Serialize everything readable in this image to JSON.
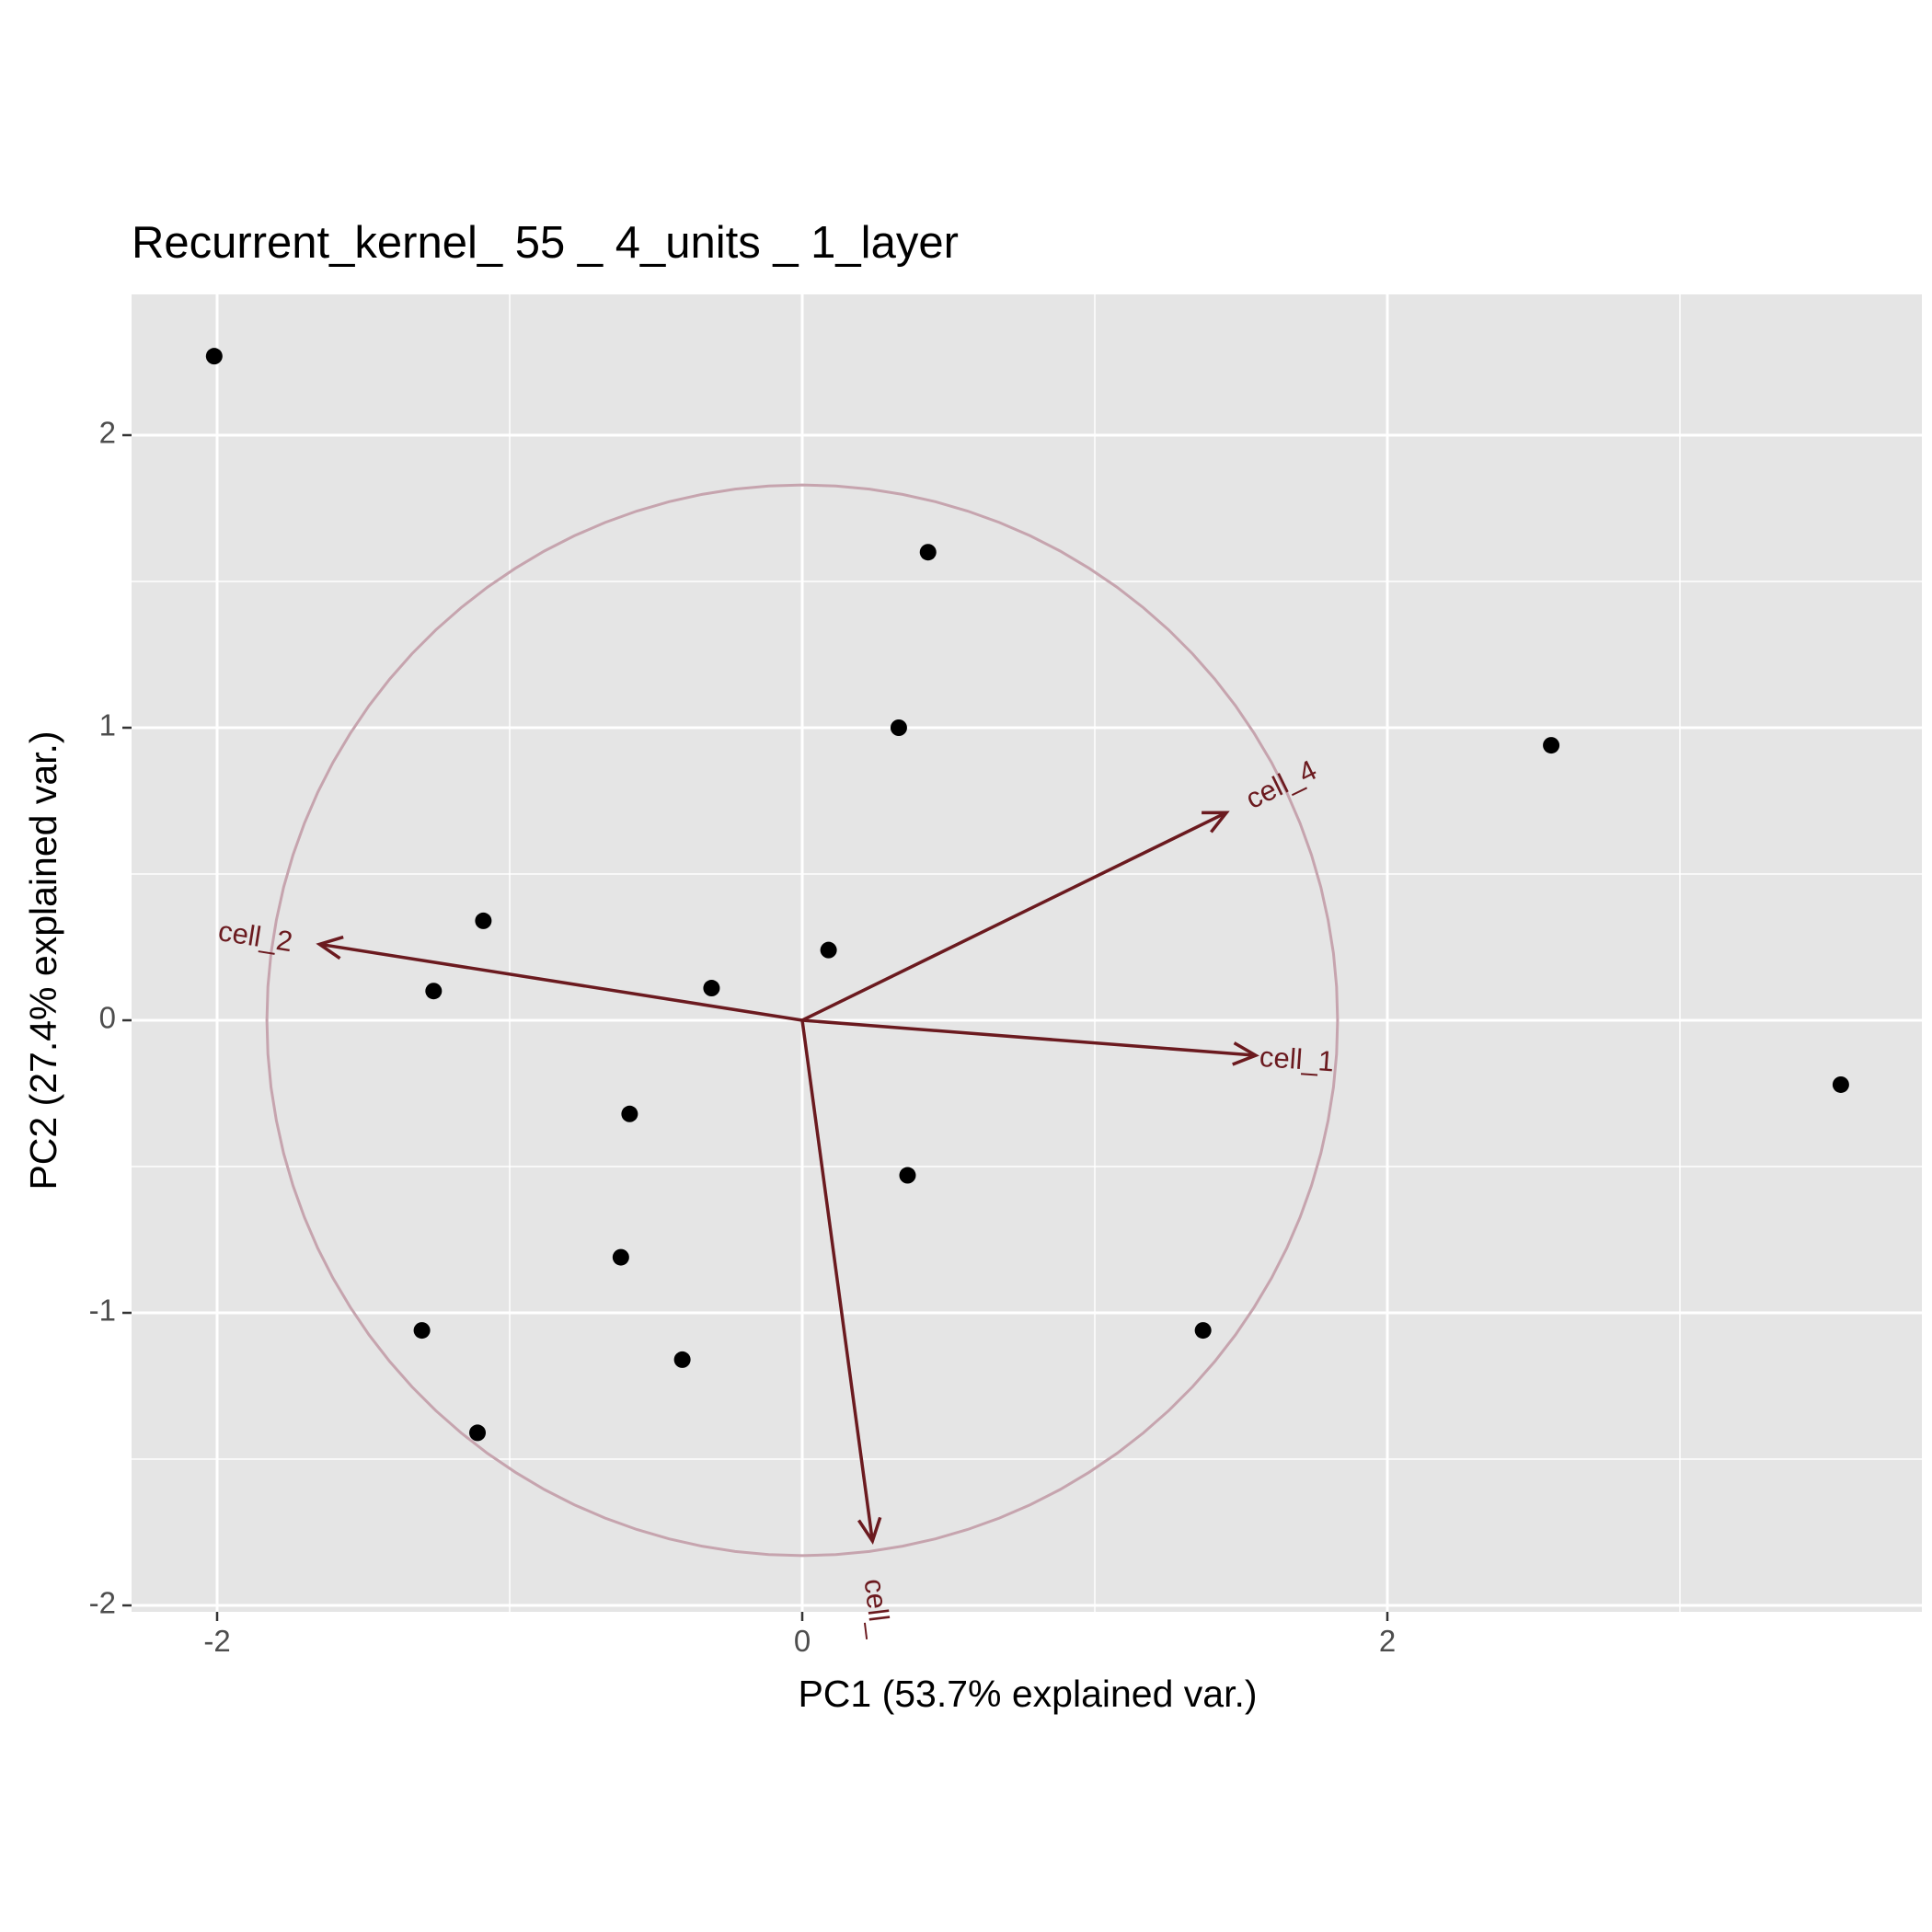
{
  "chart_data": {
    "type": "scatter",
    "title": "Recurrent_kernel_ 55 _ 4_units _ 1_layer",
    "xlabel": "PC1 (53.7% explained var.)",
    "ylabel": "PC2 (27.4% explained var.)",
    "xlim": [
      -2.3,
      3.8
    ],
    "ylim": [
      -2.05,
      2.5
    ],
    "x_ticks": [
      {
        "value": -2,
        "label": "-2"
      },
      {
        "value": 0,
        "label": "0"
      },
      {
        "value": 2,
        "label": "2"
      }
    ],
    "y_ticks": [
      {
        "value": -2,
        "label": "-2"
      },
      {
        "value": -1,
        "label": "-1"
      },
      {
        "value": 0,
        "label": "0"
      },
      {
        "value": 1,
        "label": "1"
      },
      {
        "value": 2,
        "label": "2"
      }
    ],
    "points": [
      {
        "x": -2.01,
        "y": 2.27
      },
      {
        "x": 0.43,
        "y": 1.6
      },
      {
        "x": 0.33,
        "y": 1.0
      },
      {
        "x": 2.56,
        "y": 0.94
      },
      {
        "x": -1.09,
        "y": 0.34
      },
      {
        "x": 0.09,
        "y": 0.24
      },
      {
        "x": -1.26,
        "y": 0.1
      },
      {
        "x": -0.31,
        "y": 0.11
      },
      {
        "x": 3.55,
        "y": -0.22
      },
      {
        "x": -0.59,
        "y": -0.32
      },
      {
        "x": 0.36,
        "y": -0.53
      },
      {
        "x": -0.62,
        "y": -0.81
      },
      {
        "x": 1.37,
        "y": -1.06
      },
      {
        "x": -1.3,
        "y": -1.06
      },
      {
        "x": -0.41,
        "y": -1.16
      },
      {
        "x": -1.11,
        "y": -1.41
      }
    ],
    "loadings": [
      {
        "label": "cell_1",
        "x": 1.55,
        "y": -0.12,
        "label_x": 1.69,
        "label_y": -0.14,
        "angle": 4
      },
      {
        "label": "cell_2",
        "x": -1.65,
        "y": 0.26,
        "label_x": -1.87,
        "label_y": 0.28,
        "angle": 9
      },
      {
        "label": "cell_4",
        "x": 1.45,
        "y": 0.71,
        "label_x": 1.64,
        "label_y": 0.8,
        "angle": -26
      },
      {
        "label": "cell_",
        "x": 0.24,
        "y": -1.78,
        "label_x": 0.25,
        "label_y": -2.01,
        "angle": 83
      }
    ],
    "circle_radius": 1.83,
    "grid": true,
    "colors": {
      "panel": "#e5e5e5",
      "grid": "#ffffff",
      "points": "#000000",
      "arrows": "#6b1a1f",
      "circle": "#c6a4ae"
    }
  }
}
